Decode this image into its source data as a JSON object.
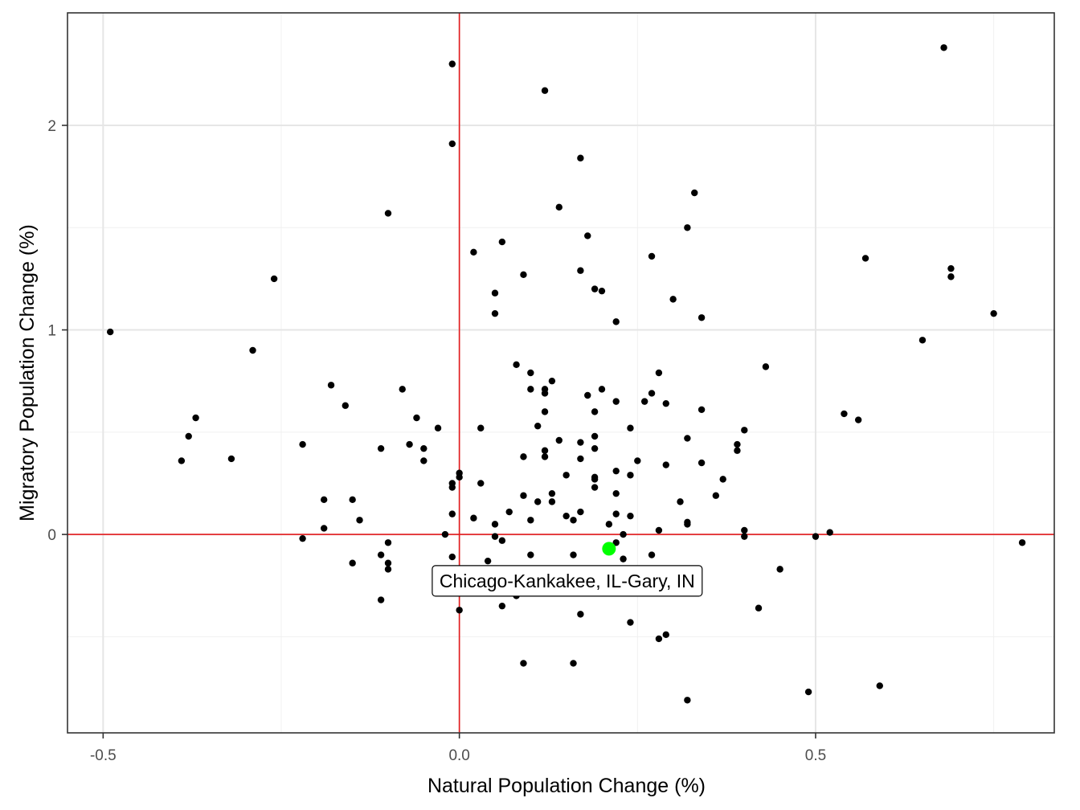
{
  "chart_data": {
    "type": "scatter",
    "title": "",
    "xlabel": "Natural Population Change (%)",
    "ylabel": "Migratory Population Change (%)",
    "xlim": [
      -0.55,
      0.835
    ],
    "ylim": [
      -0.97,
      2.55
    ],
    "x_ticks": [
      {
        "value": -0.5,
        "label": "-0.5"
      },
      {
        "value": 0.0,
        "label": "0.0"
      },
      {
        "value": 0.5,
        "label": "0.5"
      }
    ],
    "y_ticks": [
      {
        "value": 0,
        "label": "0"
      },
      {
        "value": 1,
        "label": "1"
      },
      {
        "value": 2,
        "label": "2"
      }
    ],
    "x_minor_gridlines": [
      -0.25,
      0.25,
      0.75
    ],
    "y_minor_gridlines": [
      -0.5,
      0.5,
      1.5
    ],
    "grid": true,
    "reference_lines": {
      "x": 0,
      "y": 0,
      "color": "#e41a1c"
    },
    "point_color": "#000000",
    "highlight": {
      "label": "Chicago-Kankakee, IL-Gary, IN",
      "x": 0.21,
      "y": -0.07,
      "color": "#00ff00"
    },
    "points": [
      [
        -0.49,
        0.99
      ],
      [
        -0.39,
        0.36
      ],
      [
        -0.37,
        0.57
      ],
      [
        -0.38,
        0.48
      ],
      [
        -0.32,
        0.37
      ],
      [
        -0.29,
        0.9
      ],
      [
        -0.26,
        1.25
      ],
      [
        -0.22,
        0.44
      ],
      [
        -0.22,
        -0.02
      ],
      [
        -0.19,
        0.17
      ],
      [
        -0.19,
        0.03
      ],
      [
        -0.18,
        0.73
      ],
      [
        -0.16,
        0.63
      ],
      [
        -0.15,
        0.17
      ],
      [
        -0.15,
        -0.14
      ],
      [
        -0.14,
        0.07
      ],
      [
        -0.11,
        0.42
      ],
      [
        -0.11,
        -0.1
      ],
      [
        -0.11,
        -0.32
      ],
      [
        -0.1,
        1.57
      ],
      [
        -0.1,
        -0.04
      ],
      [
        -0.1,
        -0.14
      ],
      [
        -0.1,
        -0.17
      ],
      [
        -0.08,
        0.71
      ],
      [
        -0.07,
        0.44
      ],
      [
        -0.06,
        0.57
      ],
      [
        -0.05,
        0.42
      ],
      [
        -0.05,
        0.36
      ],
      [
        -0.03,
        0.52
      ],
      [
        -0.02,
        0.0
      ],
      [
        -0.01,
        2.3
      ],
      [
        -0.01,
        1.91
      ],
      [
        -0.01,
        0.25
      ],
      [
        -0.01,
        0.23
      ],
      [
        -0.01,
        0.1
      ],
      [
        -0.01,
        -0.11
      ],
      [
        0.0,
        0.3
      ],
      [
        0.0,
        0.28
      ],
      [
        0.0,
        -0.37
      ],
      [
        0.02,
        1.38
      ],
      [
        0.02,
        0.08
      ],
      [
        0.03,
        0.52
      ],
      [
        0.03,
        0.25
      ],
      [
        0.04,
        -0.13
      ],
      [
        0.05,
        1.18
      ],
      [
        0.05,
        1.08
      ],
      [
        0.05,
        0.05
      ],
      [
        0.05,
        -0.01
      ],
      [
        0.06,
        1.43
      ],
      [
        0.06,
        -0.03
      ],
      [
        0.06,
        -0.35
      ],
      [
        0.07,
        0.11
      ],
      [
        0.08,
        0.83
      ],
      [
        0.08,
        -0.3
      ],
      [
        0.09,
        1.27
      ],
      [
        0.09,
        0.38
      ],
      [
        0.09,
        0.19
      ],
      [
        0.09,
        -0.63
      ],
      [
        0.1,
        0.79
      ],
      [
        0.1,
        0.71
      ],
      [
        0.1,
        0.07
      ],
      [
        0.1,
        -0.1
      ],
      [
        0.11,
        0.53
      ],
      [
        0.11,
        0.16
      ],
      [
        0.12,
        2.17
      ],
      [
        0.12,
        0.71
      ],
      [
        0.12,
        0.69
      ],
      [
        0.12,
        0.6
      ],
      [
        0.12,
        0.41
      ],
      [
        0.12,
        0.38
      ],
      [
        0.13,
        0.75
      ],
      [
        0.13,
        0.2
      ],
      [
        0.13,
        0.16
      ],
      [
        0.14,
        1.6
      ],
      [
        0.14,
        0.46
      ],
      [
        0.15,
        0.29
      ],
      [
        0.15,
        0.09
      ],
      [
        0.16,
        0.07
      ],
      [
        0.16,
        -0.1
      ],
      [
        0.16,
        -0.63
      ],
      [
        0.17,
        1.84
      ],
      [
        0.17,
        1.29
      ],
      [
        0.17,
        0.45
      ],
      [
        0.17,
        0.37
      ],
      [
        0.17,
        0.11
      ],
      [
        0.17,
        -0.39
      ],
      [
        0.18,
        1.46
      ],
      [
        0.18,
        0.68
      ],
      [
        0.19,
        1.2
      ],
      [
        0.19,
        0.6
      ],
      [
        0.19,
        0.48
      ],
      [
        0.19,
        0.42
      ],
      [
        0.19,
        0.28
      ],
      [
        0.19,
        0.27
      ],
      [
        0.19,
        0.23
      ],
      [
        0.2,
        1.19
      ],
      [
        0.2,
        0.71
      ],
      [
        0.2,
        -0.28
      ],
      [
        0.21,
        0.05
      ],
      [
        0.22,
        1.04
      ],
      [
        0.22,
        0.65
      ],
      [
        0.22,
        0.31
      ],
      [
        0.22,
        0.2
      ],
      [
        0.22,
        0.1
      ],
      [
        0.22,
        -0.04
      ],
      [
        0.23,
        0.0
      ],
      [
        0.23,
        -0.12
      ],
      [
        0.24,
        0.52
      ],
      [
        0.24,
        0.29
      ],
      [
        0.24,
        0.09
      ],
      [
        0.24,
        -0.43
      ],
      [
        0.25,
        0.36
      ],
      [
        0.26,
        0.65
      ],
      [
        0.27,
        1.36
      ],
      [
        0.27,
        0.69
      ],
      [
        0.27,
        -0.1
      ],
      [
        0.27,
        -0.28
      ],
      [
        0.28,
        0.79
      ],
      [
        0.28,
        0.02
      ],
      [
        0.28,
        -0.51
      ],
      [
        0.29,
        0.64
      ],
      [
        0.29,
        0.34
      ],
      [
        0.29,
        -0.49
      ],
      [
        0.3,
        1.15
      ],
      [
        0.31,
        0.16
      ],
      [
        0.32,
        1.5
      ],
      [
        0.32,
        0.47
      ],
      [
        0.32,
        0.06
      ],
      [
        0.32,
        0.05
      ],
      [
        0.32,
        -0.81
      ],
      [
        0.33,
        1.67
      ],
      [
        0.34,
        1.06
      ],
      [
        0.34,
        0.61
      ],
      [
        0.34,
        0.35
      ],
      [
        0.36,
        0.19
      ],
      [
        0.37,
        0.27
      ],
      [
        0.39,
        0.44
      ],
      [
        0.39,
        0.41
      ],
      [
        0.4,
        0.51
      ],
      [
        0.4,
        0.02
      ],
      [
        0.4,
        -0.01
      ],
      [
        0.42,
        -0.36
      ],
      [
        0.43,
        0.82
      ],
      [
        0.45,
        -0.17
      ],
      [
        0.49,
        -0.77
      ],
      [
        0.5,
        -0.01
      ],
      [
        0.52,
        0.01
      ],
      [
        0.54,
        0.59
      ],
      [
        0.56,
        0.56
      ],
      [
        0.57,
        1.35
      ],
      [
        0.59,
        -0.74
      ],
      [
        0.65,
        0.95
      ],
      [
        0.68,
        2.38
      ],
      [
        0.69,
        1.3
      ],
      [
        0.69,
        1.26
      ],
      [
        0.75,
        1.08
      ],
      [
        0.79,
        -0.04
      ]
    ]
  }
}
